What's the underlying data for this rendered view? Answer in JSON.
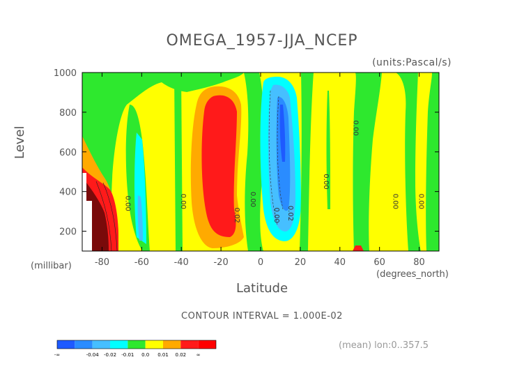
{
  "chart_data": {
    "type": "heatmap",
    "title": "OMEGA_1957-JJA_NCEP",
    "units_label": "(units:Pascal/s)",
    "xlabel": "Latitude",
    "x_unit_label": "(degrees_north)",
    "ylabel": "Level",
    "y_unit_label": "(millibar)",
    "xlim": [
      -90,
      90
    ],
    "ylim": [
      1000,
      100
    ],
    "x_ticks": [
      -80,
      -60,
      -40,
      -20,
      0,
      20,
      40,
      60,
      80
    ],
    "y_ticks": [
      200,
      400,
      600,
      800,
      1000
    ],
    "x_tick_labels": [
      "-80",
      "-60",
      "-40",
      "-20",
      "0",
      "20",
      "40",
      "60",
      "80"
    ],
    "y_tick_labels": [
      "200",
      "400",
      "600",
      "800",
      "1000"
    ],
    "contour_interval_text": "CONTOUR INTERVAL = 1.000E-02",
    "footnote": "(mean) lon:0..357.5",
    "colorbar": {
      "labels": [
        "-∞",
        "-0.04",
        "-0.02",
        "-0.01",
        "0.0",
        "0.01",
        "0.02",
        "∞"
      ],
      "colors": [
        "#1e5aff",
        "#2a8cff",
        "#46bfff",
        "#00ffff",
        "#2ee82e",
        "#ffff00",
        "#ffaa00",
        "#ff1a1a",
        "#ff0000"
      ]
    },
    "contour_labels": [
      {
        "text": "0.00",
        "x": -68,
        "y": 340
      },
      {
        "text": "0.00",
        "x": -40,
        "y": 350
      },
      {
        "text": "0.02",
        "x": -13,
        "y": 280
      },
      {
        "text": "0.00",
        "x": -5,
        "y": 360
      },
      {
        "text": "0.00",
        "x": 7,
        "y": 280
      },
      {
        "text": "0.02",
        "x": 14,
        "y": 290
      },
      {
        "text": "0.00",
        "x": 32,
        "y": 450
      },
      {
        "text": "0.00",
        "x": 47,
        "y": 720
      },
      {
        "text": "0.00",
        "x": 67,
        "y": 350
      },
      {
        "text": "0.00",
        "x": 80,
        "y": 350
      }
    ]
  }
}
